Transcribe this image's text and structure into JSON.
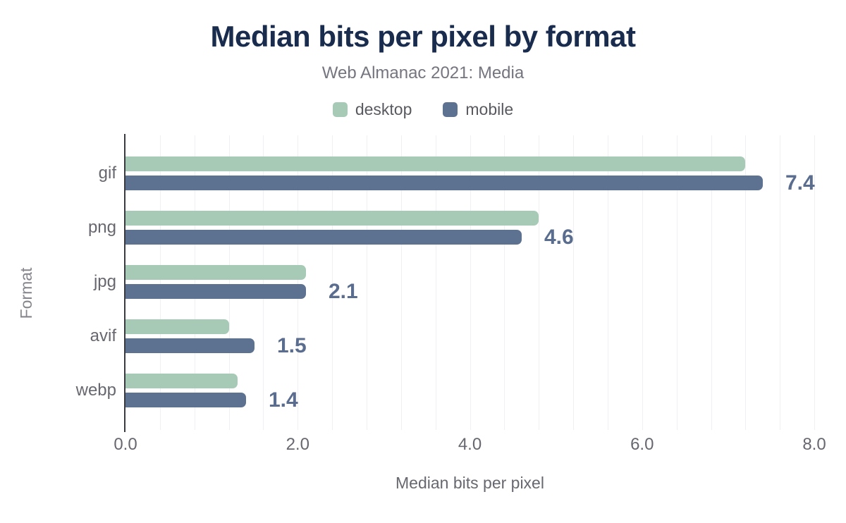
{
  "chart_data": {
    "type": "bar",
    "orientation": "horizontal",
    "title": "Median bits per pixel by format",
    "subtitle": "Web Almanac 2021: Media",
    "xlabel": "Median bits per pixel",
    "ylabel": "Format",
    "categories": [
      "gif",
      "png",
      "jpg",
      "avif",
      "webp"
    ],
    "series": [
      {
        "name": "desktop",
        "color": "#a6cab5",
        "values": [
          7.2,
          4.8,
          2.1,
          1.2,
          1.3
        ]
      },
      {
        "name": "mobile",
        "color": "#5d7190",
        "values": [
          7.4,
          4.6,
          2.1,
          1.5,
          1.4
        ]
      }
    ],
    "data_labels": {
      "series": "mobile",
      "values": [
        "7.4",
        "4.6",
        "2.1",
        "1.5",
        "1.4"
      ],
      "color": "#5a6d8e"
    },
    "xlim": [
      0,
      8
    ],
    "xticks": [
      {
        "value": 0,
        "label": "0.0"
      },
      {
        "value": 2,
        "label": "2.0"
      },
      {
        "value": 4,
        "label": "4.0"
      },
      {
        "value": 6,
        "label": "6.0"
      },
      {
        "value": 8,
        "label": "8.0"
      }
    ],
    "grid": {
      "show": true,
      "interval": 0.4,
      "color": "#f0f0f4"
    },
    "legend_position": "top",
    "colors": {
      "title": "#192c4e",
      "subtitle": "#74757e",
      "axis_text": "#67686f",
      "axis_line": "#3a3b40",
      "background": "#ffffff"
    }
  }
}
